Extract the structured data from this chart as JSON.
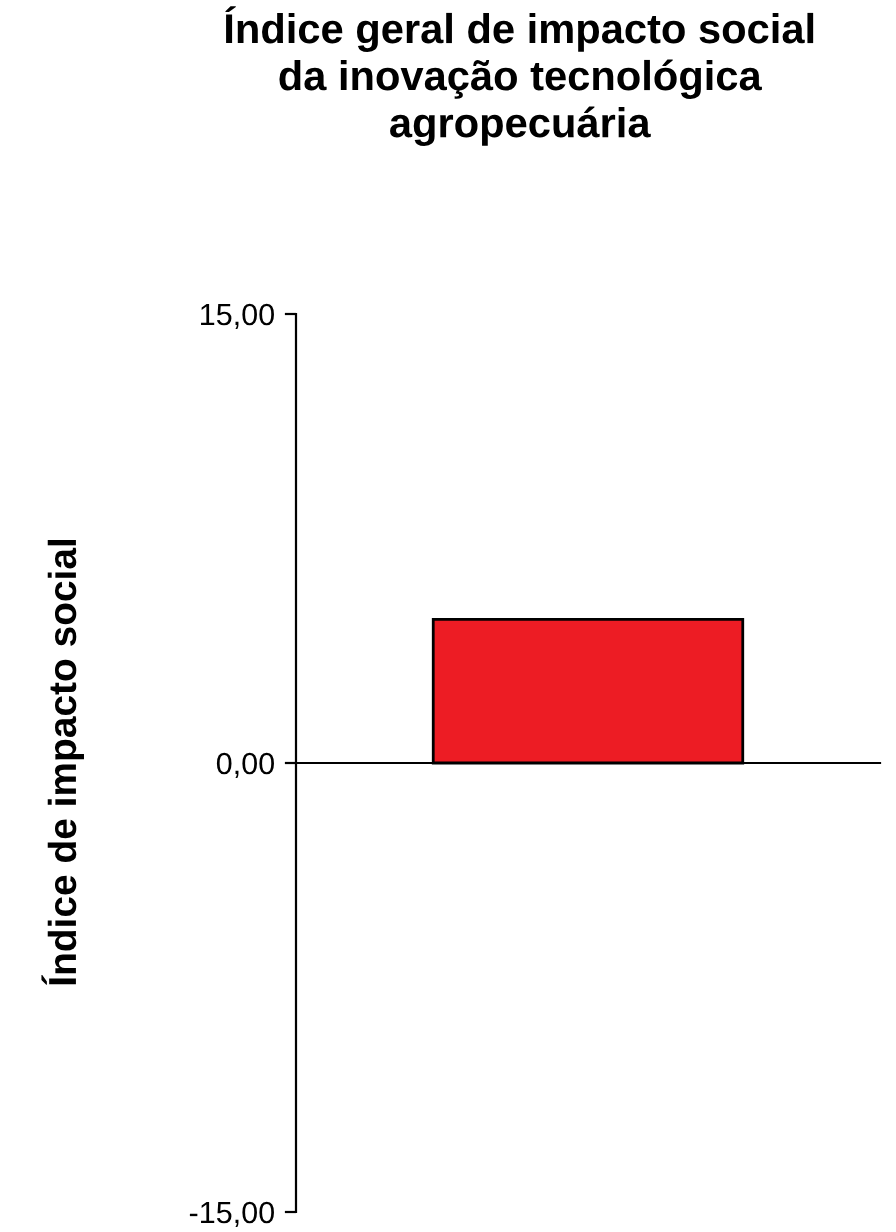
{
  "chart_data": {
    "type": "bar",
    "title": "Índice geral de impacto social\nda inovação tecnológica\nagropecuária",
    "ylabel": "Índice de impacto social",
    "categories": [
      null
    ],
    "series": [
      {
        "color": "#ed1c24",
        "values": [
          4.8
        ]
      }
    ],
    "ylim": [
      -15,
      15
    ],
    "yticks": [
      {
        "value": -15,
        "label": "-15,00"
      },
      {
        "value": 0,
        "label": "0,00"
      },
      {
        "value": 15,
        "label": "15,00"
      }
    ],
    "tick_labels": "y"
  }
}
